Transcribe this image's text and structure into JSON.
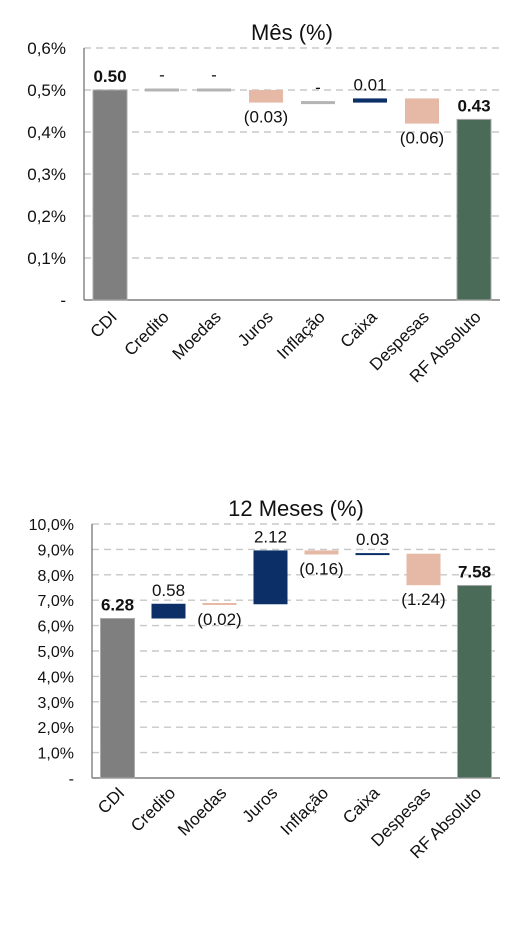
{
  "colors": {
    "total": "#7f7f7f",
    "final_total": "#4a6b58",
    "positive": "#0b2f66",
    "negative": "#e6b9a6",
    "zero": "#b4b4b4",
    "grid": "#c8c8c8",
    "axis": "#7f7f7f"
  },
  "chart_data": [
    {
      "type": "bar",
      "subtype": "waterfall",
      "title": "Mês (%)",
      "categories": [
        "CDI",
        "Credito",
        "Moedas",
        "Juros",
        "Inflação",
        "Caixa",
        "Despesas",
        "RF Absoluto"
      ],
      "values": [
        0.5,
        0.0,
        0.0,
        -0.03,
        0.0,
        0.01,
        -0.06,
        0.43
      ],
      "kinds": [
        "total",
        "zero",
        "zero",
        "negative",
        "zero",
        "positive",
        "negative",
        "final_total"
      ],
      "data_labels": [
        "0.50",
        "-",
        "-",
        "(0.03)",
        "-",
        "0.01",
        "(0.06)",
        "0.43"
      ],
      "bold_labels": [
        true,
        false,
        false,
        false,
        false,
        false,
        false,
        true
      ],
      "label_above": [
        true,
        true,
        true,
        false,
        true,
        true,
        false,
        true
      ],
      "yticks": [
        "-",
        "0,1%",
        "0,2%",
        "0,3%",
        "0,4%",
        "0,5%",
        "0,6%"
      ],
      "ylim": [
        0,
        0.6
      ],
      "grid": true,
      "xlabel": "",
      "ylabel": ""
    },
    {
      "type": "bar",
      "subtype": "waterfall",
      "title": "12 Meses (%)",
      "categories": [
        "CDI",
        "Credito",
        "Moedas",
        "Juros",
        "Inflação",
        "Caixa",
        "Despesas",
        "RF Absoluto"
      ],
      "values": [
        6.28,
        0.58,
        -0.02,
        2.12,
        -0.16,
        0.03,
        -1.24,
        7.58
      ],
      "kinds": [
        "total",
        "positive",
        "negative",
        "positive",
        "negative",
        "positive",
        "negative",
        "final_total"
      ],
      "data_labels": [
        "6.28",
        "0.58",
        "(0.02)",
        "2.12",
        "(0.16)",
        "0.03",
        "(1.24)",
        "7.58"
      ],
      "bold_labels": [
        true,
        false,
        false,
        false,
        false,
        false,
        false,
        true
      ],
      "label_above": [
        true,
        true,
        false,
        true,
        false,
        true,
        false,
        true
      ],
      "yticks": [
        "-",
        "1,0%",
        "2,0%",
        "3,0%",
        "4,0%",
        "5,0%",
        "6,0%",
        "7,0%",
        "8,0%",
        "9,0%",
        "10,0%"
      ],
      "ylim": [
        0,
        10
      ],
      "grid": true,
      "xlabel": "",
      "ylabel": ""
    }
  ]
}
